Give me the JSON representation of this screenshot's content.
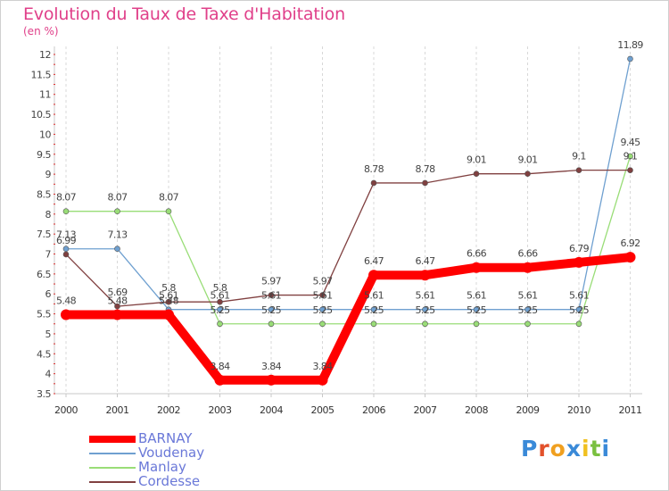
{
  "chart_data": {
    "type": "line",
    "title": "Evolution du Taux de Taxe d'Habitation",
    "subtitle": "(en %)",
    "x": [
      "2000",
      "2001",
      "2002",
      "2003",
      "2004",
      "2005",
      "2006",
      "2007",
      "2008",
      "2009",
      "2010",
      "2011"
    ],
    "ylim": [
      3.5,
      12
    ],
    "yticks": [
      "3.5",
      "4",
      "4.5",
      "5",
      "5.5",
      "6",
      "6.5",
      "7",
      "7.5",
      "8",
      "8.5",
      "9",
      "9.5",
      "10",
      "10.5",
      "11",
      "11.5",
      "12"
    ],
    "grid": "vertical dashed",
    "legend_position": "bottom-left",
    "series": [
      {
        "name": "BARNAY",
        "color": "#ff0000",
        "values": [
          5.48,
          5.48,
          5.48,
          3.84,
          3.84,
          3.84,
          6.47,
          6.47,
          6.66,
          6.66,
          6.79,
          6.92
        ],
        "labels": [
          "5.48",
          "5.48",
          "5.48",
          "3.84",
          "3.84",
          "3.84",
          "6.47",
          "6.47",
          "6.66",
          "6.66",
          "6.79",
          "6.92"
        ]
      },
      {
        "name": "Voudenay",
        "color": "#6fa0d0",
        "values": [
          7.13,
          7.13,
          5.61,
          5.61,
          5.61,
          5.61,
          5.61,
          5.61,
          5.61,
          5.61,
          5.61,
          11.89
        ],
        "labels": [
          "7.13",
          "7.13",
          "5.61",
          "5.61",
          "5.61",
          "5.61",
          "5.61",
          "5.61",
          "5.61",
          "5.61",
          "5.61",
          "11.89"
        ]
      },
      {
        "name": "Manlay",
        "color": "#99dd77",
        "values": [
          8.07,
          8.07,
          8.07,
          5.25,
          5.25,
          5.25,
          5.25,
          5.25,
          5.25,
          5.25,
          5.25,
          9.45
        ],
        "labels": [
          "8.07",
          "8.07",
          "8.07",
          "5.25",
          "5.25",
          "5.25",
          "5.25",
          "5.25",
          "5.25",
          "5.25",
          "5.25",
          "9.45"
        ]
      },
      {
        "name": "Cordesse",
        "color": "#804040",
        "values": [
          6.99,
          5.69,
          5.8,
          5.8,
          5.97,
          5.97,
          8.78,
          8.78,
          9.01,
          9.01,
          9.1,
          9.1
        ],
        "labels": [
          "6.99",
          "5.69",
          "5.8",
          "5.8",
          "5.97",
          "5.97",
          "8.78",
          "8.78",
          "9.01",
          "9.01",
          "9.1",
          "9.1"
        ]
      }
    ]
  },
  "brand": {
    "letters": [
      "P",
      "r",
      "o",
      "x",
      "i",
      "t",
      "i"
    ],
    "colors": [
      "#3a8ad8",
      "#e2512b",
      "#f0a020",
      "#3a8ad8",
      "#f0c020",
      "#7ac040",
      "#3a8ad8"
    ]
  }
}
